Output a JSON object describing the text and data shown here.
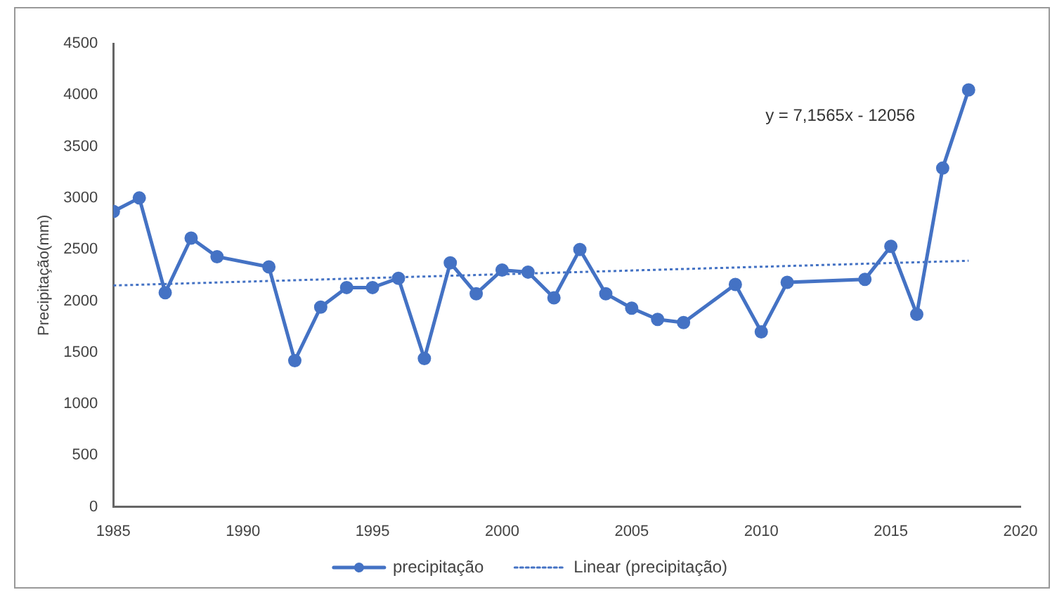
{
  "chart_data": {
    "type": "line",
    "ylabel": "Precipitação(mm)",
    "xlim": [
      1985,
      2020
    ],
    "xticks": [
      1985,
      1990,
      1995,
      2000,
      2005,
      2010,
      2015,
      2020
    ],
    "ylim": [
      0,
      4500
    ],
    "yticks": [
      0,
      500,
      1000,
      1500,
      2000,
      2500,
      3000,
      3500,
      4000,
      4500
    ],
    "grid": false,
    "legend": "bottom",
    "marker": "circle",
    "x": [
      1985,
      1986,
      1987,
      1988,
      1989,
      1991,
      1992,
      1993,
      1994,
      1995,
      1996,
      1997,
      1998,
      1999,
      2000,
      2001,
      2002,
      2003,
      2004,
      2005,
      2006,
      2007,
      2009,
      2010,
      2011,
      2014,
      2015,
      2016,
      2017,
      2018
    ],
    "series": [
      {
        "name": "precipitação",
        "color": "#4472c4",
        "values": [
          2870,
          3000,
          2080,
          2610,
          2430,
          2330,
          1420,
          1940,
          2130,
          2130,
          2220,
          1440,
          2370,
          2070,
          2300,
          2280,
          2030,
          2500,
          2070,
          1930,
          1820,
          1790,
          2160,
          1700,
          2180,
          2210,
          2530,
          1870,
          3290,
          4050
        ]
      },
      {
        "name": "Linear (precipitação)",
        "type": "line",
        "color": "#4472c4",
        "line_style": "dotted",
        "marker": "none",
        "x": [
          1985,
          2018
        ],
        "values": [
          2150,
          2390
        ]
      }
    ],
    "annotations": [
      "y = 7,1565x - 12056"
    ]
  }
}
